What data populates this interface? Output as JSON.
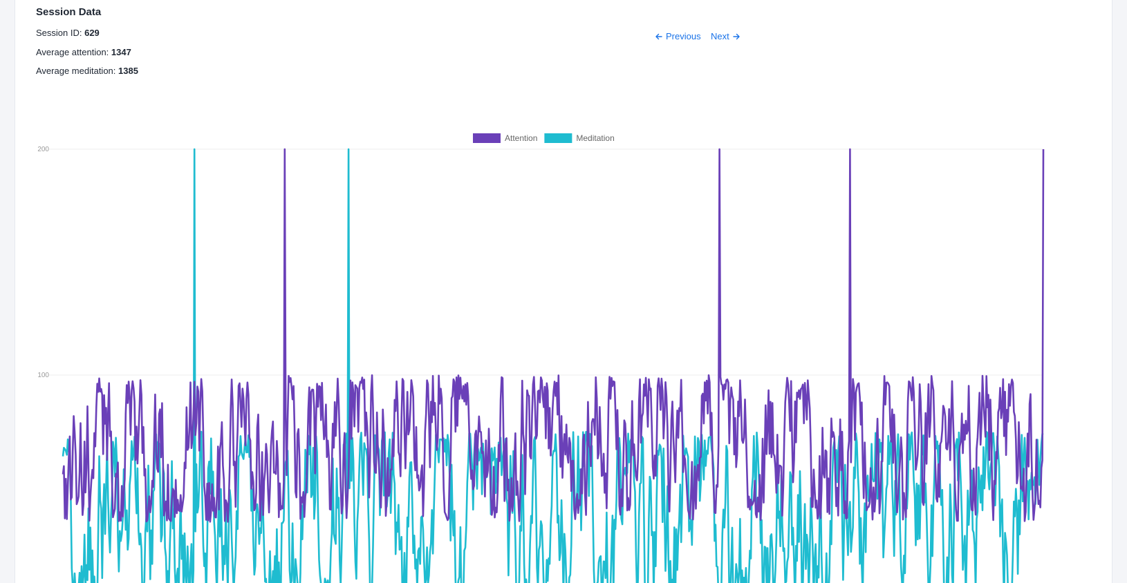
{
  "session": {
    "title": "Session Data",
    "id_label": "Session ID: ",
    "id_value": "629",
    "attention_label": "Average attention: ",
    "attention_value": "1347",
    "meditation_label": "Average meditation: ",
    "meditation_value": "1385"
  },
  "nav": {
    "previous_label": "Previous",
    "next_label": "Next"
  },
  "colors": {
    "attention": "#6a40b8",
    "meditation": "#1fbcd0",
    "link": "#1a73e8"
  },
  "chart_data": {
    "type": "line",
    "title": "",
    "xlabel": "",
    "ylabel": "",
    "ylim": [
      0,
      200
    ],
    "y_ticks": [
      100,
      200
    ],
    "grid": true,
    "legend_position": "top",
    "n_points": 1000,
    "series": [
      {
        "name": "Attention",
        "color": "#6a40b8",
        "typical_range": [
          35,
          100
        ],
        "spikes": [
          {
            "index": 226,
            "value": 200
          },
          {
            "index": 669,
            "value": 200
          },
          {
            "index": 802,
            "value": 200
          },
          {
            "index": 999,
            "value": 200
          }
        ]
      },
      {
        "name": "Meditation",
        "color": "#1fbcd0",
        "typical_range": [
          0,
          75
        ],
        "spikes": [
          {
            "index": 134,
            "value": 200
          },
          {
            "index": 291,
            "value": 200
          }
        ]
      }
    ]
  }
}
